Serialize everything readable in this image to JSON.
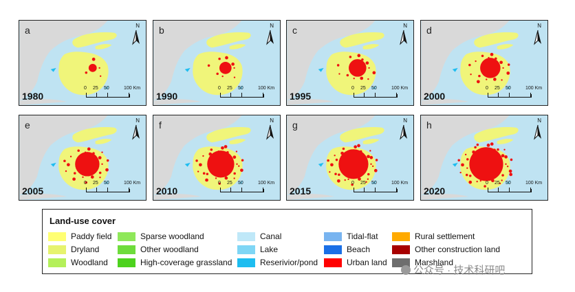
{
  "panels": [
    {
      "letter": "a",
      "year": "1980",
      "urban": 1
    },
    {
      "letter": "b",
      "year": "1990",
      "urban": 2
    },
    {
      "letter": "c",
      "year": "1995",
      "urban": 3
    },
    {
      "letter": "d",
      "year": "2000",
      "urban": 4
    },
    {
      "letter": "e",
      "year": "2005",
      "urban": 5
    },
    {
      "letter": "f",
      "year": "2010",
      "urban": 6
    },
    {
      "letter": "g",
      "year": "2015",
      "urban": 7
    },
    {
      "letter": "h",
      "year": "2020",
      "urban": 8
    }
  ],
  "north_label": "N",
  "scale_labels": [
    "0",
    "25",
    "50",
    "100 Km"
  ],
  "legend": {
    "title": "Land-use cover",
    "items": [
      {
        "label": "Paddy field",
        "color": "#ffff73"
      },
      {
        "label": "Dryland",
        "color": "#e6f36e"
      },
      {
        "label": "Woodland",
        "color": "#b4f05a"
      },
      {
        "label": "Sparse woodland",
        "color": "#8fe85a"
      },
      {
        "label": "Other woodland",
        "color": "#6edc3c"
      },
      {
        "label": "High-coverage grassland",
        "color": "#4dd21e"
      },
      {
        "label": "Canal",
        "color": "#bfe8f8"
      },
      {
        "label": "Lake",
        "color": "#7fd6f5"
      },
      {
        "label": "Reserivior/pond",
        "color": "#1ebdf0"
      },
      {
        "label": "Tidal-flat",
        "color": "#78b4f0"
      },
      {
        "label": "Beach",
        "color": "#1a6fe6"
      },
      {
        "label": "Urban land",
        "color": "#ff0000"
      },
      {
        "label": "Rural settlement",
        "color": "#ffaa00"
      },
      {
        "label": "Other construction land",
        "color": "#a80000"
      },
      {
        "label": "Marshland",
        "color": "#6e6e6e"
      }
    ]
  },
  "watermark": "公众号 · 技术科研吧",
  "colors": {
    "sea": "#bfe3f2",
    "neighbor": "#d9d9d9",
    "land": "#f0f57a",
    "urban": "#ee1111"
  }
}
